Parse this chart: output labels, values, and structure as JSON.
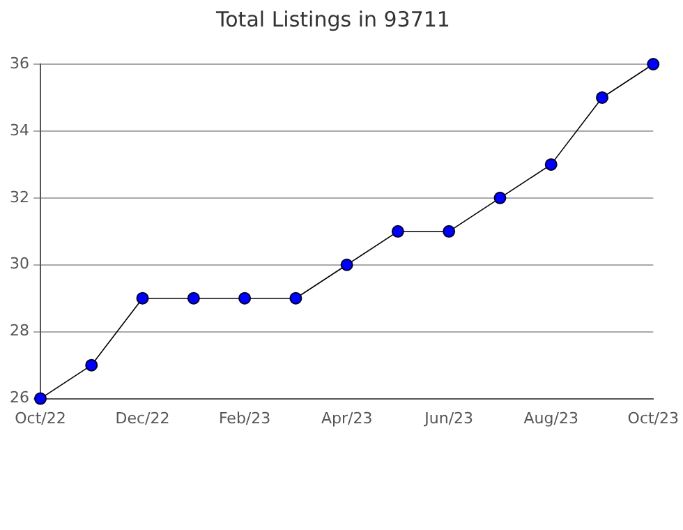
{
  "chart_data": {
    "type": "line",
    "title": "Total Listings in 93711",
    "categories": [
      "Oct/22",
      null,
      "Dec/22",
      null,
      "Feb/23",
      null,
      "Apr/23",
      null,
      "Jun/23",
      null,
      "Aug/23",
      null,
      "Oct/23"
    ],
    "series": [
      {
        "color": "#0000ff",
        "values": [
          26,
          27,
          29,
          29,
          29,
          29,
          30,
          31,
          31,
          32,
          33,
          35,
          36
        ]
      }
    ],
    "ylim": [
      26,
      36
    ],
    "yticks": [
      26,
      28,
      30,
      32,
      34,
      36
    ],
    "grid": "y",
    "marker": "circle",
    "line_style": "solid",
    "legend": false
  }
}
